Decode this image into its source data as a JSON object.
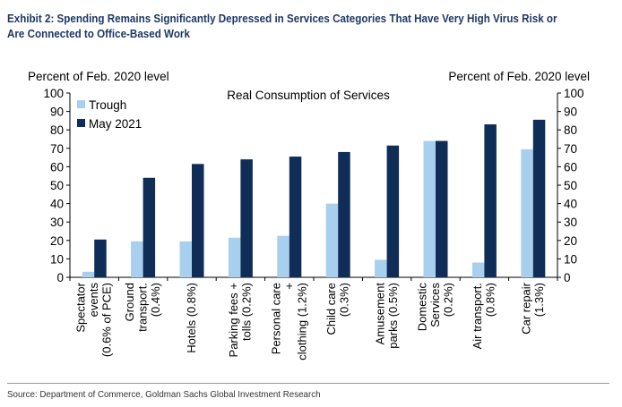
{
  "exhibit_title": "Exhibit 2: Spending Remains Significantly Depressed in Services Categories That Have Very High Virus Risk or Are Connected to Office-Based Work",
  "source": "Source: Department of Commerce, Goldman Sachs Global Investment Research",
  "colors": {
    "trough": "#a8d0ee",
    "may2021": "#0f2d56",
    "title": "#1f3864"
  },
  "chart_data": {
    "type": "bar",
    "title": "Real Consumption of Services",
    "ylabel_left": "Percent of Feb. 2020 level",
    "ylabel_right": "Percent of Feb. 2020 level",
    "ylim": [
      0,
      100
    ],
    "yticks": [
      0,
      10,
      20,
      30,
      40,
      50,
      60,
      70,
      80,
      90,
      100
    ],
    "legend_position": "top-left",
    "categories": [
      [
        "Spectator",
        "events",
        "(0.6% of PCE)"
      ],
      [
        "Ground",
        "transport.",
        "(0.4%)"
      ],
      [
        "Hotels (0.8%)"
      ],
      [
        "Parking fees +",
        "tolls (0.2%)"
      ],
      [
        "Personal care",
        "+",
        "clothing (1.2%)"
      ],
      [
        "Child care",
        "(0.3%)"
      ],
      [
        "Amusement",
        "parks (0.5%)"
      ],
      [
        "Domestic",
        "Services",
        "(0.2%)"
      ],
      [
        "Air transport.",
        "(0.8%)"
      ],
      [
        "Car repair",
        "(1.3%)"
      ]
    ],
    "series": [
      {
        "name": "Trough",
        "values": [
          3,
          19.5,
          19.5,
          21.5,
          22.5,
          40,
          9.5,
          74,
          8,
          69.5
        ]
      },
      {
        "name": "May 2021",
        "values": [
          20.5,
          54,
          61.5,
          64,
          65.5,
          68,
          71.5,
          74,
          83,
          85.5
        ]
      }
    ]
  }
}
